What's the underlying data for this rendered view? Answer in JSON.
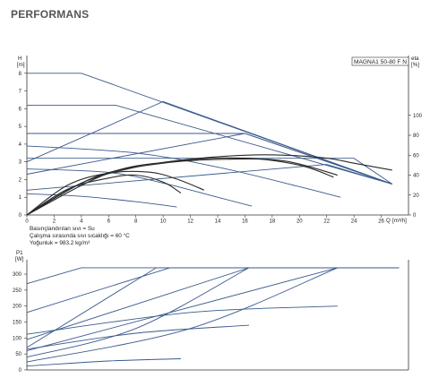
{
  "page": {
    "title": "PERFORMANS"
  },
  "model_label": "MAGNA1 50-80 F N",
  "info_lines": [
    "Basınçlandırılan sıvı = Su",
    "Çalışma sırasında sıvı sıcaklığı = 60 °C",
    "Yoğunluk = 983.2 kg/m³"
  ],
  "colors": {
    "curve": "#3a5a8c",
    "efficiency": "#2a2a2a",
    "axis": "#333333",
    "grid": "#cccccc"
  },
  "chart_data": [
    {
      "type": "line",
      "title": "",
      "ylabel": "H",
      "yunit": "[m]",
      "y2label": "eta",
      "y2unit": "[%]",
      "xlabel": "Q",
      "xunit": "[m³/h]",
      "xlim": [
        0,
        28
      ],
      "ylim": [
        0,
        9
      ],
      "y2lim": [
        0,
        160
      ],
      "xticks": [
        0,
        2,
        4,
        6,
        8,
        10,
        12,
        14,
        16,
        18,
        20,
        22,
        24,
        26
      ],
      "yticks": [
        0,
        1,
        2,
        3,
        4,
        5,
        6,
        7,
        8
      ],
      "y2ticks": [
        0,
        20,
        40,
        60,
        80,
        100
      ],
      "grid": false,
      "series": [
        {
          "kind": "max-speed",
          "x": [
            0,
            4,
            26.8
          ],
          "y": [
            8,
            8,
            1.75
          ]
        },
        {
          "kind": "constant-pressure",
          "x": [
            0,
            6.5,
            26.8
          ],
          "y": [
            6.2,
            6.2,
            1.75
          ]
        },
        {
          "kind": "constant-pressure",
          "x": [
            0,
            16,
            26.8
          ],
          "y": [
            4.6,
            4.6,
            1.75
          ]
        },
        {
          "kind": "constant-pressure",
          "x": [
            0,
            24,
            26.8
          ],
          "y": [
            3.2,
            3.2,
            1.75
          ]
        },
        {
          "kind": "proportional-pressure",
          "x": [
            0,
            10,
            26.8
          ],
          "y": [
            3.0,
            6.4,
            1.75
          ]
        },
        {
          "kind": "proportional-pressure",
          "x": [
            0,
            16,
            26.8
          ],
          "y": [
            2.3,
            4.6,
            1.75
          ]
        },
        {
          "kind": "proportional-pressure",
          "x": [
            0,
            22,
            26.8
          ],
          "y": [
            1.4,
            2.85,
            1.75
          ]
        },
        {
          "kind": "constant-curve",
          "x": [
            0,
            8,
            14,
            20,
            23
          ],
          "y": [
            3.9,
            3.5,
            2.7,
            1.6,
            1.0
          ]
        },
        {
          "kind": "constant-curve",
          "x": [
            0,
            6,
            10,
            14,
            16.5
          ],
          "y": [
            2.6,
            2.4,
            1.8,
            1.0,
            0.5
          ]
        },
        {
          "kind": "constant-curve",
          "x": [
            0,
            4,
            8,
            11
          ],
          "y": [
            1.2,
            1.05,
            0.75,
            0.45
          ]
        },
        {
          "kind": "efficiency",
          "x": [
            0,
            4,
            8,
            12,
            16,
            19,
            22,
            24,
            26.8
          ],
          "y": [
            0,
            32,
            48,
            56,
            60,
            60,
            57,
            52,
            45
          ]
        },
        {
          "kind": "efficiency",
          "x": [
            0,
            3,
            6,
            9,
            11,
            13
          ],
          "y": [
            0,
            30,
            42,
            43,
            36,
            25
          ]
        },
        {
          "kind": "efficiency",
          "x": [
            0,
            3,
            6,
            8,
            10,
            11.3
          ],
          "y": [
            0,
            26,
            37,
            40,
            33,
            22
          ]
        },
        {
          "kind": "efficiency",
          "x": [
            0,
            6,
            11,
            16,
            20,
            22.5
          ],
          "y": [
            0,
            42,
            54,
            57,
            50,
            38
          ]
        },
        {
          "kind": "efficiency",
          "x": [
            0,
            5,
            10,
            15,
            19,
            22.8
          ],
          "y": [
            0,
            38,
            52,
            56,
            54,
            40
          ]
        }
      ]
    },
    {
      "type": "line",
      "title": "",
      "ylabel": "P1",
      "yunit": "[W]",
      "xlim": [
        0,
        28
      ],
      "ylim": [
        0,
        345
      ],
      "yticks": [
        0,
        50,
        100,
        150,
        200,
        250,
        300
      ],
      "grid": false,
      "series": [
        {
          "kind": "max-speed",
          "x": [
            0,
            4,
            27.3
          ],
          "y": [
            270,
            320,
            320
          ]
        },
        {
          "kind": "constant-pressure",
          "x": [
            0,
            10.5,
            27.3
          ],
          "y": [
            180,
            320,
            320
          ]
        },
        {
          "kind": "constant-pressure",
          "x": [
            0,
            16.3,
            27.3
          ],
          "y": [
            95,
            320,
            320
          ]
        },
        {
          "kind": "constant-pressure",
          "x": [
            0,
            22.8,
            27.3
          ],
          "y": [
            60,
            320,
            320
          ]
        },
        {
          "kind": "proportional-pressure",
          "x": [
            0,
            9.5,
            27.3
          ],
          "y": [
            70,
            320,
            320
          ]
        },
        {
          "kind": "proportional-pressure",
          "x": [
            0,
            8,
            16.3,
            27.3
          ],
          "y": [
            40,
            130,
            320,
            320
          ]
        },
        {
          "kind": "proportional-pressure",
          "x": [
            0,
            12,
            22.8,
            27.3
          ],
          "y": [
            25,
            130,
            320,
            320
          ]
        },
        {
          "kind": "constant-curve",
          "x": [
            0,
            12,
            22.8
          ],
          "y": [
            112,
            180,
            200
          ]
        },
        {
          "kind": "constant-curve",
          "x": [
            0,
            8,
            16.3
          ],
          "y": [
            65,
            115,
            140
          ]
        },
        {
          "kind": "constant-curve",
          "x": [
            0,
            6,
            11.3
          ],
          "y": [
            12,
            28,
            35
          ]
        }
      ]
    }
  ]
}
